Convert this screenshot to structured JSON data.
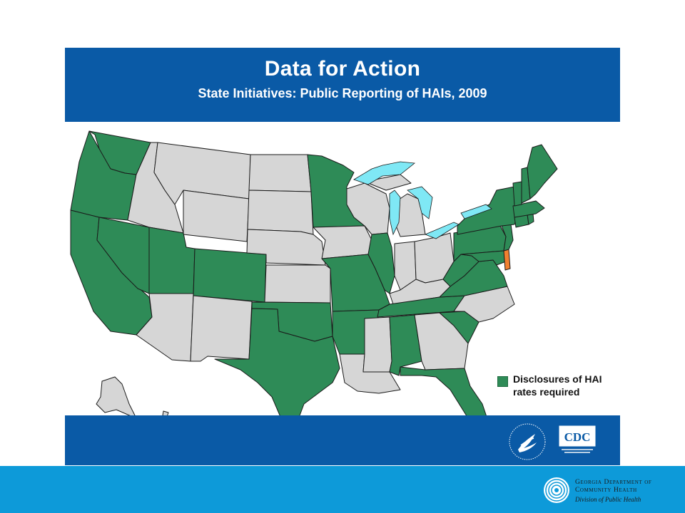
{
  "slide": {
    "title": "Data for Action",
    "subtitle": "State Initiatives: Public Reporting of HAIs, 2009"
  },
  "legend": {
    "label": "Disclosures of HAI rates required",
    "color": "#2e8b57"
  },
  "colors": {
    "required": "#2e8b57",
    "not_required": "#d6d6d6",
    "other": "#f08030",
    "lakes": "#7fe8f5",
    "band": "#0a5aa6",
    "bottom_bar": "#0d9ad9"
  },
  "map": {
    "required_states": [
      "WA",
      "OR",
      "CA",
      "NV",
      "UT",
      "CO",
      "MN",
      "MO",
      "IL",
      "AR",
      "OK",
      "TX",
      "TN",
      "AL",
      "SC",
      "FL",
      "VA",
      "WV",
      "MD",
      "PA",
      "NY",
      "VT",
      "NH",
      "ME",
      "MA",
      "CT",
      "RI",
      "NJ"
    ],
    "not_required_states": [
      "AK",
      "HI",
      "ID",
      "MT",
      "WY",
      "ND",
      "SD",
      "NE",
      "KS",
      "AZ",
      "NM",
      "IA",
      "WI",
      "MI",
      "IN",
      "OH",
      "KY",
      "NC",
      "GA",
      "MS",
      "LA"
    ],
    "other_states": [
      "DE"
    ]
  },
  "logos": {
    "cdc_text": "CDC",
    "hhs_icon": "hhs-eagle-seal-icon",
    "gdch_icon": "gdch-emblem-icon"
  },
  "footer": {
    "org_line1": "Georgia Department of",
    "org_line2": "Community Health",
    "org_line3": "Division of Public Health"
  }
}
